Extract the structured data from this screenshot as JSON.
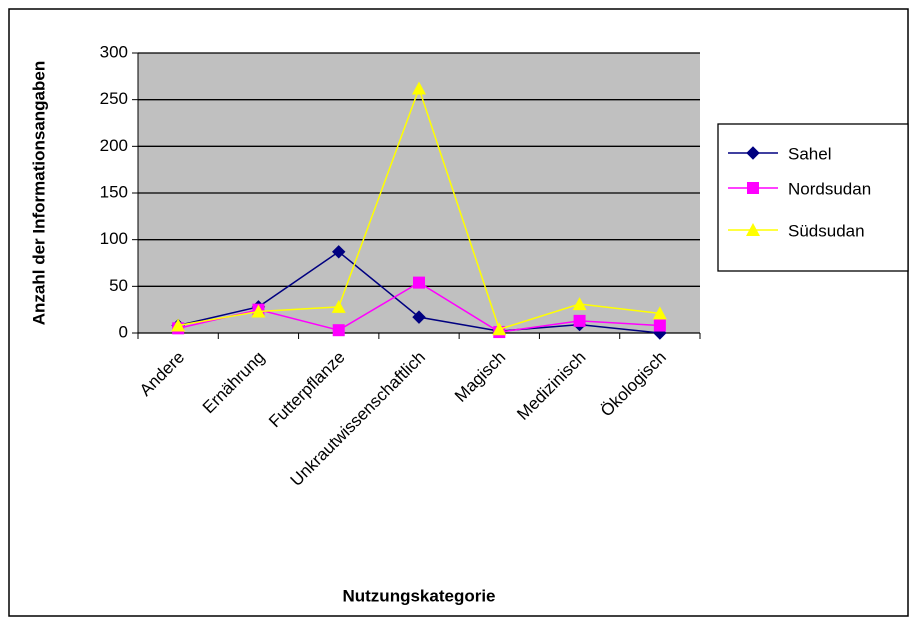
{
  "chart_data": {
    "type": "line",
    "y_label": "Anzahl der Informationsangaben",
    "x_label": "Nutzungskategorie",
    "categories": [
      "Andere",
      "Ernährung",
      "Futterpflanze",
      "Unkrautwissenschaftlich",
      "Magisch",
      "Medizinisch",
      "Ökologisch"
    ],
    "series": [
      {
        "name": "Sahel",
        "color": "#000080",
        "marker": "diamond",
        "values": [
          8,
          28,
          87,
          17,
          2,
          9,
          0
        ]
      },
      {
        "name": "Nordsudan",
        "color": "#FF00FF",
        "marker": "square",
        "values": [
          5,
          25,
          3,
          54,
          1,
          13,
          8
        ]
      },
      {
        "name": "Südsudan",
        "color": "#FFFF00",
        "marker": "triangle",
        "values": [
          8,
          23,
          28,
          262,
          4,
          31,
          21
        ]
      }
    ],
    "ylim": [
      0,
      300
    ],
    "yticks": [
      0,
      50,
      100,
      150,
      200,
      250,
      300
    ],
    "grid": true,
    "legend": "right"
  }
}
